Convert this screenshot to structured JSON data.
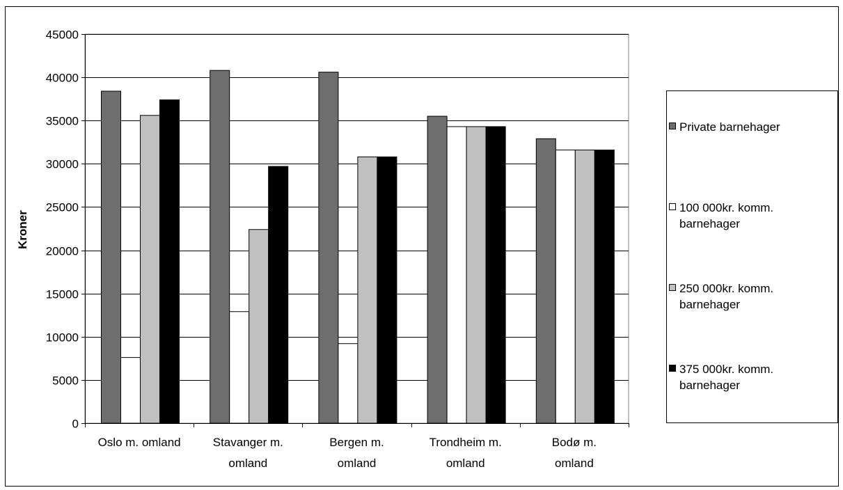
{
  "chart_data": {
    "type": "bar",
    "title": "",
    "xlabel": "",
    "ylabel": "Kroner",
    "ylim": [
      0,
      45000
    ],
    "ytick_step": 5000,
    "grid": true,
    "legend_position": "right",
    "categories": [
      [
        "Oslo m. omland"
      ],
      [
        "Stavanger m.",
        "omland"
      ],
      [
        "Bergen m.",
        "omland"
      ],
      [
        "Trondheim m.",
        "omland"
      ],
      [
        "Bodø m.",
        "omland"
      ]
    ],
    "series": [
      {
        "name": "Private barnehager",
        "color": "#6e6e6e",
        "values": [
          38400,
          40800,
          40600,
          35500,
          32900
        ]
      },
      {
        "name": "100 000kr. komm. barnehager",
        "color": "#ffffff",
        "values": [
          7600,
          12900,
          9200,
          34300,
          31600
        ]
      },
      {
        "name": "250 000kr. komm. barnehager",
        "color": "#c0c0c0",
        "values": [
          35600,
          22400,
          30800,
          34300,
          31600
        ]
      },
      {
        "name": "375 000kr. komm. barnehager",
        "color": "#000000",
        "values": [
          37400,
          29700,
          30800,
          34300,
          31600
        ]
      }
    ],
    "legend_lines": [
      [
        "Private barnehager"
      ],
      [
        "100 000kr. komm.",
        "barnehager"
      ],
      [
        "250 000kr. komm.",
        "barnehager"
      ],
      [
        "375 000kr. komm.",
        "barnehager"
      ]
    ]
  }
}
